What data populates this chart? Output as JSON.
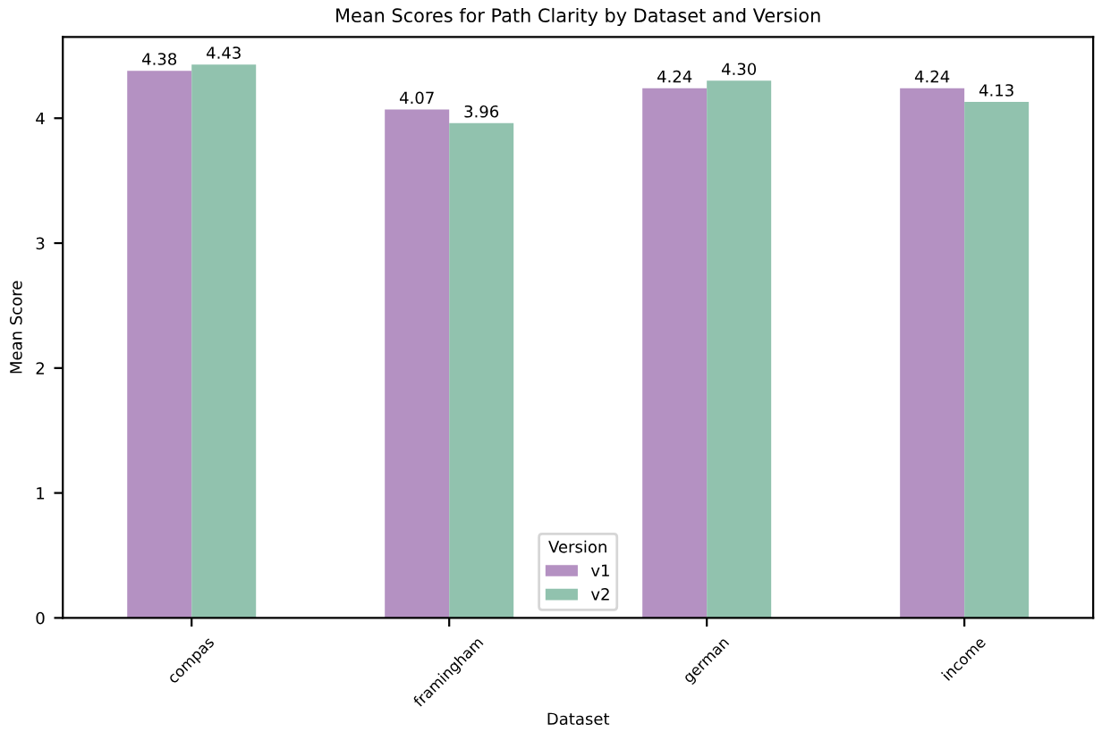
{
  "chart_data": {
    "type": "bar",
    "title": "Mean Scores for Path Clarity by Dataset and Version",
    "xlabel": "Dataset",
    "ylabel": "Mean Score",
    "legend_title": "Version",
    "categories": [
      "compas",
      "framingham",
      "german",
      "income"
    ],
    "series": [
      {
        "name": "v1",
        "color": "#b491c2",
        "values": [
          4.38,
          4.07,
          4.24,
          4.24
        ],
        "value_labels": [
          "4.38",
          "4.07",
          "4.24",
          "4.24"
        ]
      },
      {
        "name": "v2",
        "color": "#91c2ae",
        "values": [
          4.43,
          3.96,
          4.3,
          4.13
        ],
        "value_labels": [
          "4.43",
          "3.96",
          "4.30",
          "4.13"
        ]
      }
    ],
    "ylim": [
      0,
      4.65
    ],
    "yticks": [
      0,
      1,
      2,
      3,
      4
    ],
    "grid": false,
    "legend": "bottom"
  }
}
